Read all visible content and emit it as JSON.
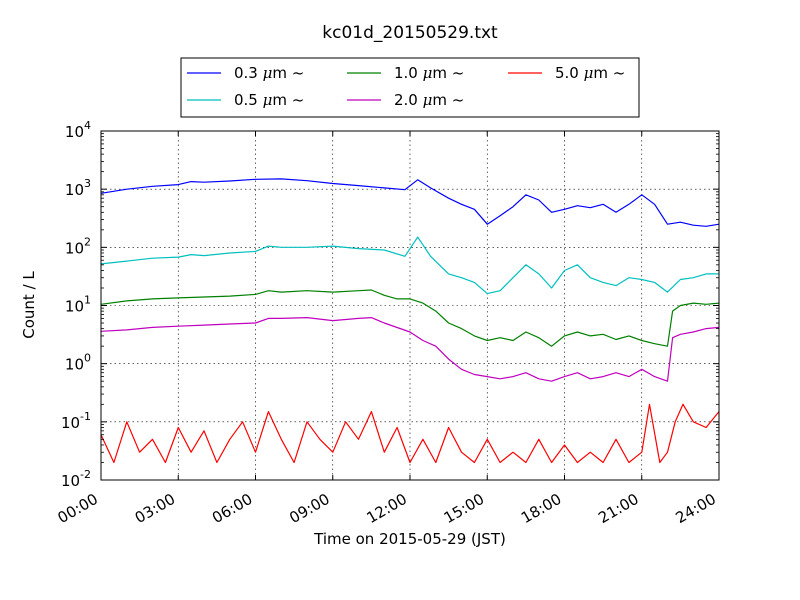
{
  "chart_data": {
    "type": "line",
    "title": "kc01d_20150529.txt",
    "xlabel": "Time on 2015-05-29 (JST)",
    "ylabel": "Count / L",
    "x_unit": "hours",
    "xlim": [
      0,
      24
    ],
    "ylim": [
      0.01,
      10000
    ],
    "yscale": "log",
    "grid": true,
    "legend_position": "top-center, outside plot",
    "x_tick_labels": [
      "00:00",
      "03:00",
      "06:00",
      "09:00",
      "12:00",
      "15:00",
      "18:00",
      "21:00",
      "24:00"
    ],
    "y_tick_labels": [
      {
        "base": "10",
        "exp": "-2"
      },
      {
        "base": "10",
        "exp": "-1"
      },
      {
        "base": "10",
        "exp": "0"
      },
      {
        "base": "10",
        "exp": "1"
      },
      {
        "base": "10",
        "exp": "2"
      },
      {
        "base": "10",
        "exp": "3"
      },
      {
        "base": "10",
        "exp": "4"
      }
    ],
    "series": [
      {
        "name": "0.3 μm ~",
        "legend_size": "0.3",
        "color": "#0000ff",
        "points": [
          [
            0.0,
            850
          ],
          [
            1.0,
            1000
          ],
          [
            2.0,
            1120
          ],
          [
            3.0,
            1200
          ],
          [
            3.5,
            1350
          ],
          [
            4.0,
            1320
          ],
          [
            5.0,
            1380
          ],
          [
            6.0,
            1480
          ],
          [
            7.0,
            1500
          ],
          [
            8.0,
            1400
          ],
          [
            9.0,
            1250
          ],
          [
            10.0,
            1150
          ],
          [
            11.0,
            1050
          ],
          [
            11.8,
            980
          ],
          [
            12.3,
            1450
          ],
          [
            12.8,
            1050
          ],
          [
            13.5,
            700
          ],
          [
            14.0,
            550
          ],
          [
            14.5,
            450
          ],
          [
            15.0,
            250
          ],
          [
            15.5,
            350
          ],
          [
            16.0,
            500
          ],
          [
            16.5,
            800
          ],
          [
            17.0,
            650
          ],
          [
            17.5,
            400
          ],
          [
            18.0,
            450
          ],
          [
            18.5,
            520
          ],
          [
            19.0,
            480
          ],
          [
            19.5,
            550
          ],
          [
            20.0,
            400
          ],
          [
            20.5,
            550
          ],
          [
            21.0,
            800
          ],
          [
            21.5,
            550
          ],
          [
            22.0,
            250
          ],
          [
            22.5,
            270
          ],
          [
            23.0,
            240
          ],
          [
            23.5,
            230
          ],
          [
            24.0,
            250
          ]
        ]
      },
      {
        "name": "0.5 μm ~",
        "legend_size": "0.5",
        "color": "#00bfbf",
        "points": [
          [
            0.0,
            52
          ],
          [
            1.0,
            58
          ],
          [
            2.0,
            65
          ],
          [
            3.0,
            68
          ],
          [
            3.5,
            75
          ],
          [
            4.0,
            72
          ],
          [
            5.0,
            80
          ],
          [
            6.0,
            85
          ],
          [
            6.5,
            105
          ],
          [
            7.0,
            100
          ],
          [
            8.0,
            100
          ],
          [
            9.0,
            105
          ],
          [
            10.0,
            95
          ],
          [
            11.0,
            90
          ],
          [
            11.8,
            70
          ],
          [
            12.3,
            150
          ],
          [
            12.8,
            70
          ],
          [
            13.5,
            35
          ],
          [
            14.0,
            30
          ],
          [
            14.5,
            25
          ],
          [
            15.0,
            16
          ],
          [
            15.5,
            18
          ],
          [
            16.0,
            30
          ],
          [
            16.5,
            50
          ],
          [
            17.0,
            35
          ],
          [
            17.5,
            20
          ],
          [
            18.0,
            40
          ],
          [
            18.5,
            50
          ],
          [
            19.0,
            30
          ],
          [
            19.5,
            25
          ],
          [
            20.0,
            22
          ],
          [
            20.5,
            30
          ],
          [
            21.0,
            28
          ],
          [
            21.5,
            25
          ],
          [
            22.0,
            17
          ],
          [
            22.5,
            28
          ],
          [
            23.0,
            30
          ],
          [
            23.5,
            35
          ],
          [
            24.0,
            35
          ]
        ]
      },
      {
        "name": "1.0 μm ~",
        "legend_size": "1.0",
        "color": "#008000",
        "points": [
          [
            0.0,
            10.5
          ],
          [
            1.0,
            12
          ],
          [
            2.0,
            13
          ],
          [
            3.0,
            13.5
          ],
          [
            4.0,
            14
          ],
          [
            5.0,
            14.5
          ],
          [
            6.0,
            15.5
          ],
          [
            6.5,
            18
          ],
          [
            7.0,
            17
          ],
          [
            8.0,
            18
          ],
          [
            9.0,
            17
          ],
          [
            10.0,
            18
          ],
          [
            10.5,
            18.5
          ],
          [
            11.0,
            15
          ],
          [
            11.5,
            13
          ],
          [
            12.0,
            13
          ],
          [
            12.5,
            11
          ],
          [
            13.0,
            8
          ],
          [
            13.5,
            5
          ],
          [
            14.0,
            4
          ],
          [
            14.5,
            3
          ],
          [
            15.0,
            2.5
          ],
          [
            15.5,
            2.8
          ],
          [
            16.0,
            2.5
          ],
          [
            16.5,
            3.5
          ],
          [
            17.0,
            2.8
          ],
          [
            17.5,
            2
          ],
          [
            18.0,
            3
          ],
          [
            18.5,
            3.5
          ],
          [
            19.0,
            3
          ],
          [
            19.5,
            3.2
          ],
          [
            20.0,
            2.6
          ],
          [
            20.5,
            3
          ],
          [
            21.0,
            2.5
          ],
          [
            21.5,
            2.2
          ],
          [
            22.0,
            2
          ],
          [
            22.2,
            8
          ],
          [
            22.5,
            10
          ],
          [
            23.0,
            11
          ],
          [
            23.5,
            10.5
          ],
          [
            24.0,
            11
          ]
        ]
      },
      {
        "name": "2.0 μm ~",
        "legend_size": "2.0",
        "color": "#bf00bf",
        "points": [
          [
            0.0,
            3.6
          ],
          [
            1.0,
            3.8
          ],
          [
            2.0,
            4.2
          ],
          [
            3.0,
            4.4
          ],
          [
            4.0,
            4.6
          ],
          [
            5.0,
            4.8
          ],
          [
            6.0,
            5
          ],
          [
            6.5,
            6
          ],
          [
            7.0,
            6
          ],
          [
            8.0,
            6.2
          ],
          [
            9.0,
            5.5
          ],
          [
            10.0,
            6
          ],
          [
            10.5,
            6.2
          ],
          [
            11.0,
            5
          ],
          [
            12.0,
            3.5
          ],
          [
            12.5,
            2.5
          ],
          [
            13.0,
            2
          ],
          [
            13.5,
            1.2
          ],
          [
            14.0,
            0.8
          ],
          [
            14.5,
            0.65
          ],
          [
            15.0,
            0.6
          ],
          [
            15.5,
            0.55
          ],
          [
            16.0,
            0.6
          ],
          [
            16.5,
            0.7
          ],
          [
            17.0,
            0.55
          ],
          [
            17.5,
            0.5
          ],
          [
            18.0,
            0.6
          ],
          [
            18.5,
            0.7
          ],
          [
            19.0,
            0.55
          ],
          [
            19.5,
            0.6
          ],
          [
            20.0,
            0.7
          ],
          [
            20.5,
            0.6
          ],
          [
            21.0,
            0.8
          ],
          [
            21.5,
            0.6
          ],
          [
            22.0,
            0.5
          ],
          [
            22.2,
            2.8
          ],
          [
            22.5,
            3.2
          ],
          [
            23.0,
            3.5
          ],
          [
            23.5,
            4
          ],
          [
            24.0,
            4.2
          ]
        ]
      },
      {
        "name": "5.0 μm ~",
        "legend_size": "5.0",
        "color": "#ff0000",
        "points": [
          [
            0.0,
            0.06
          ],
          [
            0.5,
            0.02
          ],
          [
            1.0,
            0.1
          ],
          [
            1.5,
            0.03
          ],
          [
            2.0,
            0.05
          ],
          [
            2.5,
            0.02
          ],
          [
            3.0,
            0.08
          ],
          [
            3.5,
            0.03
          ],
          [
            4.0,
            0.07
          ],
          [
            4.5,
            0.02
          ],
          [
            5.0,
            0.05
          ],
          [
            5.5,
            0.1
          ],
          [
            6.0,
            0.03
          ],
          [
            6.5,
            0.15
          ],
          [
            7.0,
            0.05
          ],
          [
            7.5,
            0.02
          ],
          [
            8.0,
            0.1
          ],
          [
            8.5,
            0.05
          ],
          [
            9.0,
            0.03
          ],
          [
            9.5,
            0.1
          ],
          [
            10.0,
            0.05
          ],
          [
            10.5,
            0.15
          ],
          [
            11.0,
            0.03
          ],
          [
            11.5,
            0.08
          ],
          [
            12.0,
            0.02
          ],
          [
            12.5,
            0.05
          ],
          [
            13.0,
            0.02
          ],
          [
            13.5,
            0.08
          ],
          [
            14.0,
            0.03
          ],
          [
            14.5,
            0.02
          ],
          [
            15.0,
            0.05
          ],
          [
            15.5,
            0.02
          ],
          [
            16.0,
            0.03
          ],
          [
            16.5,
            0.02
          ],
          [
            17.0,
            0.05
          ],
          [
            17.5,
            0.02
          ],
          [
            18.0,
            0.04
          ],
          [
            18.5,
            0.02
          ],
          [
            19.0,
            0.03
          ],
          [
            19.5,
            0.02
          ],
          [
            20.0,
            0.05
          ],
          [
            20.5,
            0.02
          ],
          [
            21.0,
            0.03
          ],
          [
            21.3,
            0.2
          ],
          [
            21.7,
            0.02
          ],
          [
            22.0,
            0.03
          ],
          [
            22.3,
            0.1
          ],
          [
            22.6,
            0.2
          ],
          [
            23.0,
            0.1
          ],
          [
            23.5,
            0.08
          ],
          [
            24.0,
            0.15
          ]
        ]
      }
    ]
  }
}
